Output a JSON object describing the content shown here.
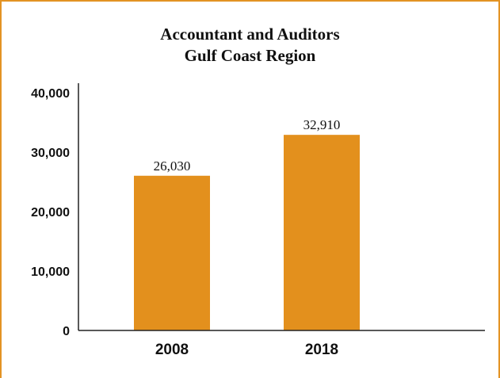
{
  "colors": {
    "frame": "#e39324",
    "bar": "#e3901d",
    "axis": "#222222",
    "text": "#111111"
  },
  "chart_data": {
    "type": "bar",
    "title_lines": [
      "Accountant and Auditors",
      "Gulf Coast Region"
    ],
    "categories": [
      "2008",
      "2018"
    ],
    "values": [
      26030,
      32910
    ],
    "value_labels": [
      "26,030",
      "32,910"
    ],
    "xlabel": "",
    "ylabel": "",
    "ylim": [
      0,
      40000
    ],
    "ytick_values": [
      0,
      10000,
      20000,
      30000,
      40000
    ],
    "ytick_labels": [
      "0",
      "10,000",
      "20,000",
      "30,000",
      "40,000"
    ],
    "grid": false,
    "legend": "none"
  }
}
